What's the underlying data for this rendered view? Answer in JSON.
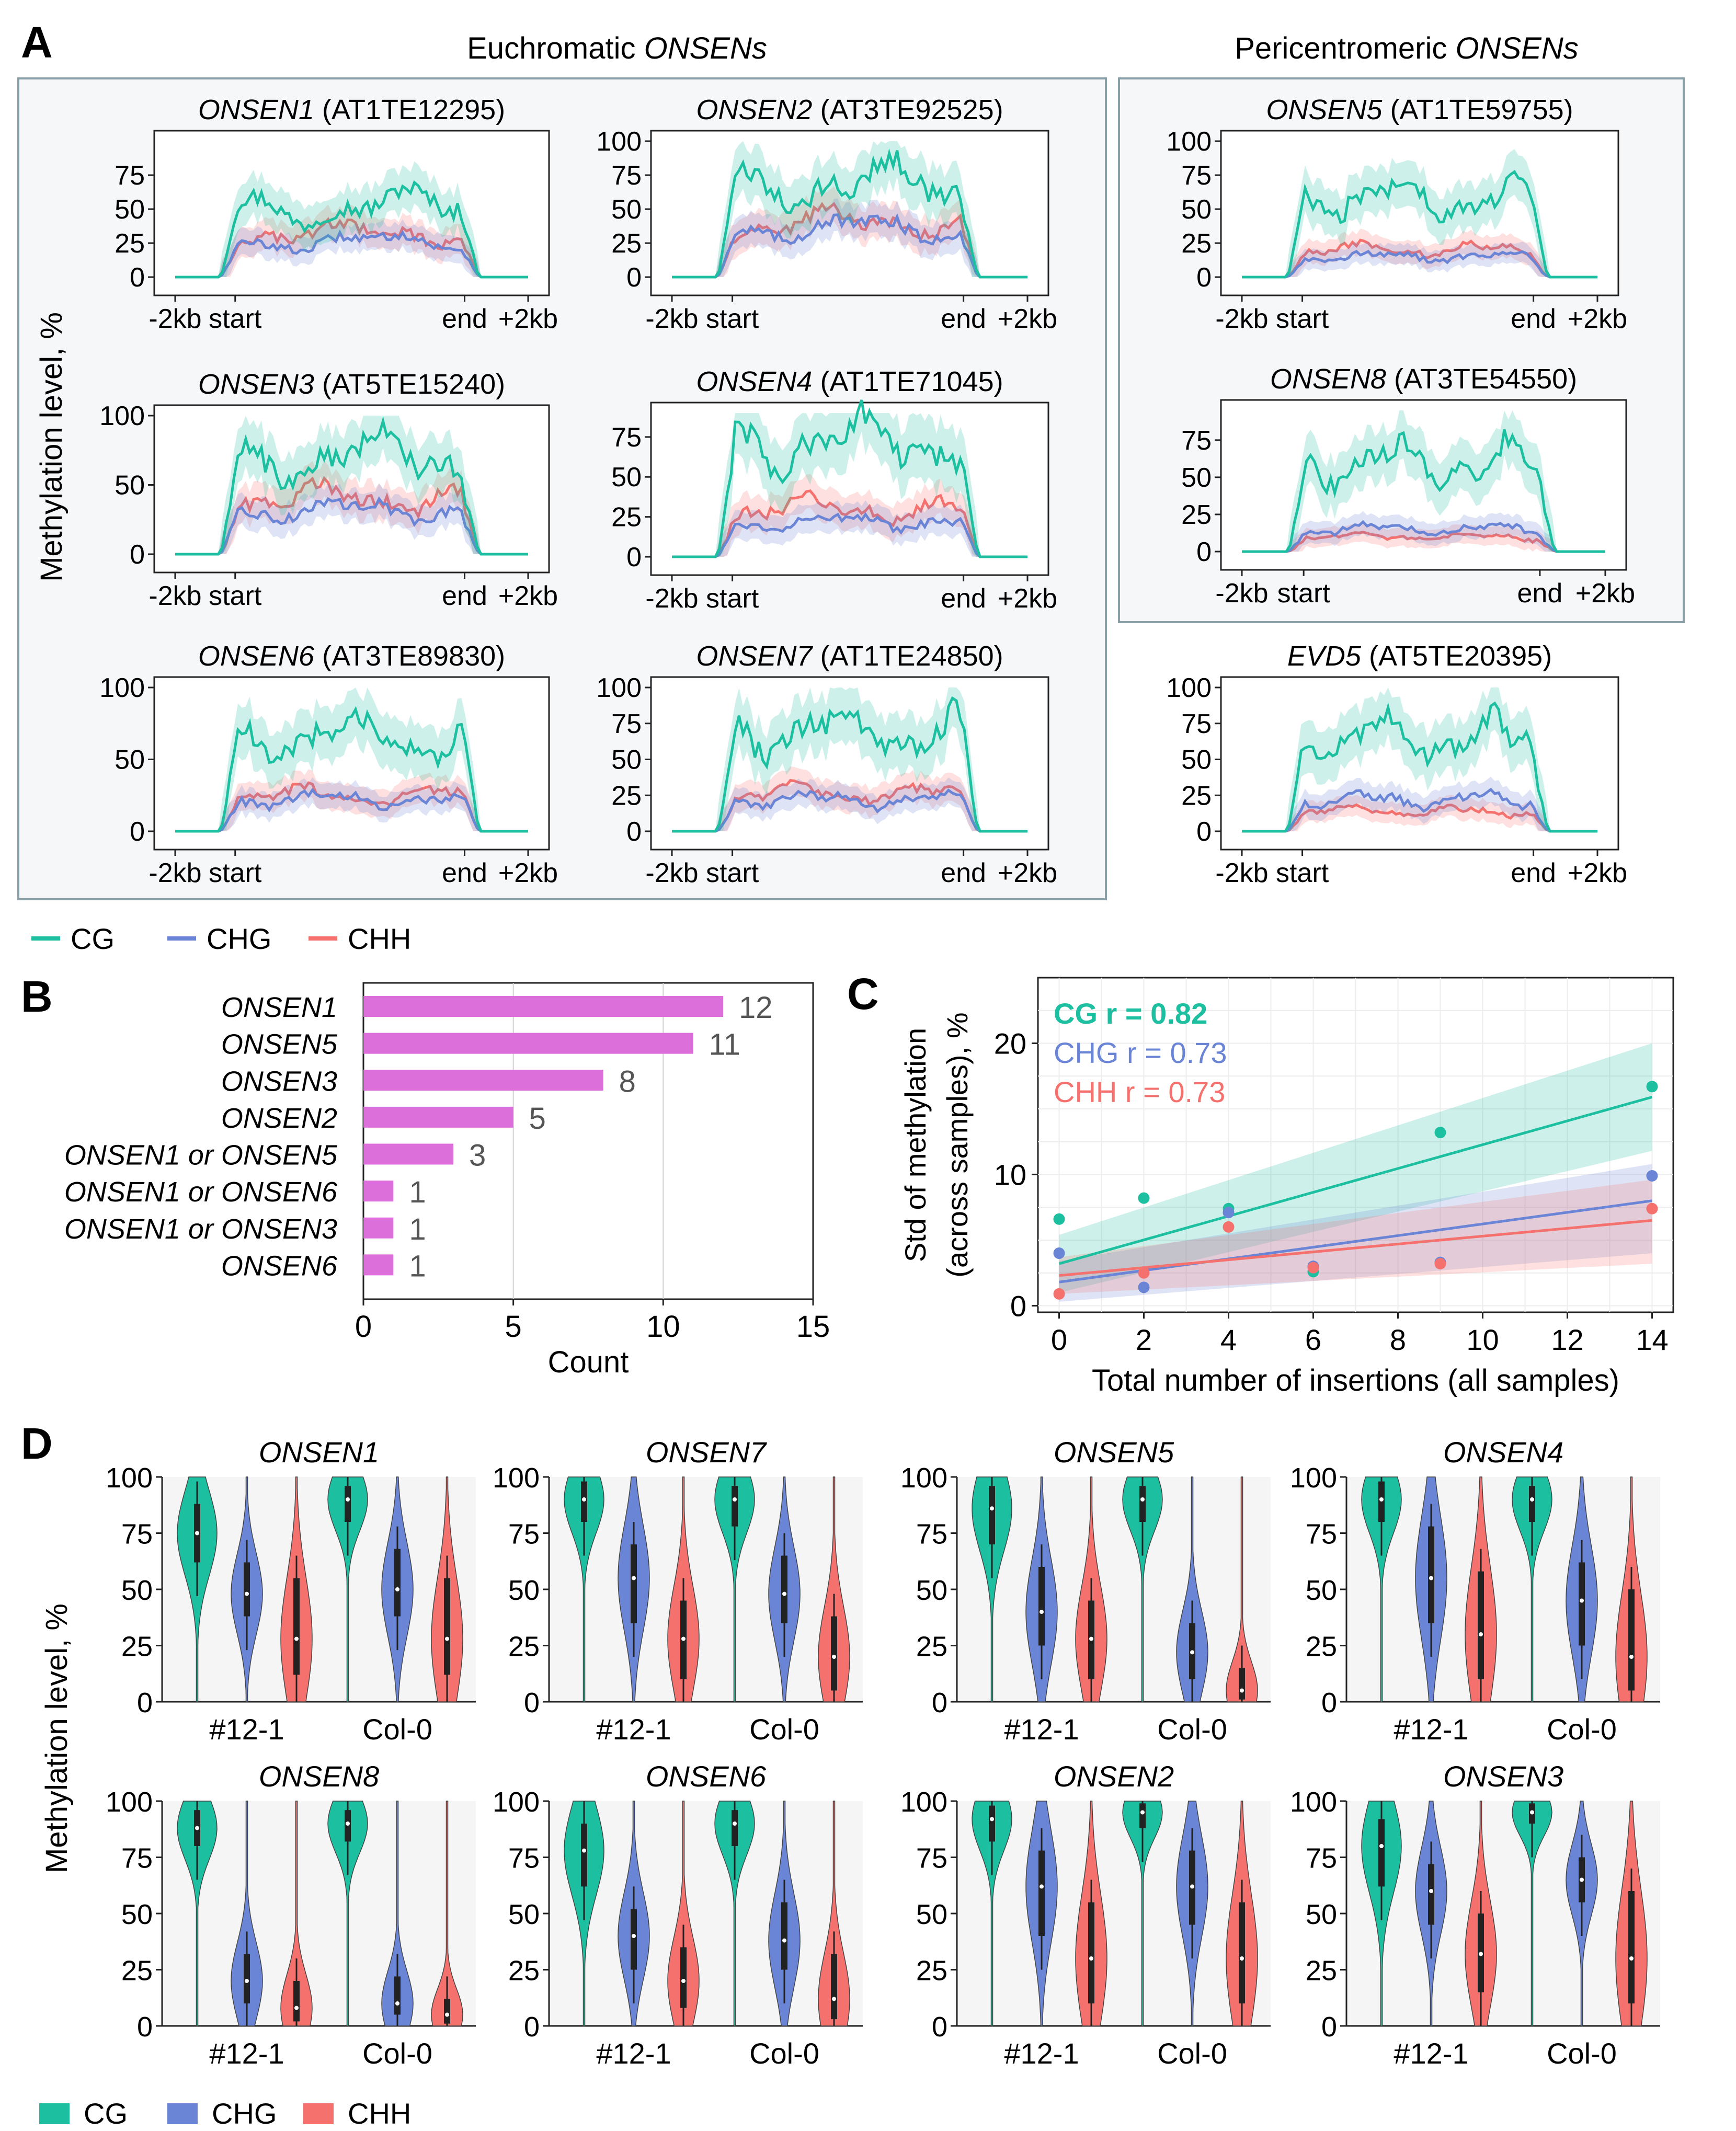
{
  "figure": {
    "panel_labels": [
      "A",
      "B",
      "C",
      "D"
    ],
    "colors": {
      "CG": "#1cbf9f",
      "CHG": "#6a84d6",
      "CHH": "#f4716e",
      "bar": "#dd6fdb",
      "box_bg": "#f6f7f8",
      "box_border": "#8aa0a8",
      "plot_bg": "#f5f5f5"
    }
  },
  "panel_a": {
    "group_titles": {
      "euchromatic": {
        "italic": "ONSENs",
        "plain": "Euchromatic "
      },
      "pericentromeric": {
        "italic": "ONSENs",
        "plain": "Pericentromeric "
      }
    },
    "y_axis_label": "Methylation level, %",
    "x_ticks": [
      "-2kb",
      "start",
      "end",
      "+2kb"
    ],
    "legend": [
      "CG",
      "CHG",
      "CHH"
    ]
  },
  "panel_b": {
    "xlabel": "Count",
    "x_ticks": [
      "0",
      "5",
      "10",
      "15"
    ]
  },
  "panel_c": {
    "xlabel": "Total number of insertions (all samples)",
    "ylabel_line1": "Std of methylation",
    "ylabel_line2": "(across samples), %",
    "annotations": [
      "CG r = 0.82",
      "CHG r = 0.73",
      "CHH r = 0.73"
    ],
    "x_ticks": [
      "0",
      "2",
      "4",
      "6",
      "8",
      "10",
      "12",
      "14"
    ],
    "y_ticks": [
      "0",
      "10",
      "20"
    ]
  },
  "panel_d": {
    "y_axis_label": "Methylation level, %",
    "x_ticks": [
      "#12-1",
      "Col-0"
    ],
    "legend": [
      "CG",
      "CHG",
      "CHH"
    ]
  },
  "chart_data": [
    {
      "type": "line",
      "panel": "A",
      "description": "Methylation profiles along ONSEN elements (metaplot, mean with shaded CI)",
      "x": [
        "-2kb",
        "start",
        "end",
        "+2kb"
      ],
      "series_names": [
        "CG",
        "CHG",
        "CHH"
      ],
      "subplots": [
        {
          "name": "ONSEN1",
          "id": "(AT1TE12295)",
          "y_ticks": [
            "0",
            "25",
            "50",
            "75"
          ],
          "ylim": [
            0,
            100
          ],
          "body_mean": {
            "CG": 52,
            "CHG": 26,
            "CHH": 32
          }
        },
        {
          "name": "ONSEN2",
          "id": "(AT3TE92525)",
          "y_ticks": [
            "0",
            "25",
            "50",
            "75",
            "100"
          ],
          "ylim": [
            0,
            100
          ],
          "body_mean": {
            "CG": 68,
            "CHG": 36,
            "CHH": 40
          }
        },
        {
          "name": "ONSEN3",
          "id": "(AT5TE15240)",
          "y_ticks": [
            "0",
            "50",
            "100"
          ],
          "ylim": [
            0,
            100
          ],
          "body_mean": {
            "CG": 70,
            "CHG": 32,
            "CHH": 40
          }
        },
        {
          "name": "ONSEN4",
          "id": "(AT1TE71045)",
          "y_ticks": [
            "0",
            "25",
            "50",
            "75"
          ],
          "ylim": [
            0,
            90
          ],
          "body_mean": {
            "CG": 72,
            "CHG": 22,
            "CHH": 30
          }
        },
        {
          "name": "ONSEN6",
          "id": "(AT3TE89830)",
          "y_ticks": [
            "0",
            "50",
            "100"
          ],
          "ylim": [
            0,
            100
          ],
          "body_mean": {
            "CG": 65,
            "CHG": 22,
            "CHH": 25
          }
        },
        {
          "name": "ONSEN7",
          "id": "(AT1TE24850)",
          "y_ticks": [
            "0",
            "25",
            "50",
            "75",
            "100"
          ],
          "ylim": [
            0,
            100
          ],
          "body_mean": {
            "CG": 70,
            "CHG": 22,
            "CHH": 26
          }
        },
        {
          "name": "ONSEN5",
          "id": "(AT1TE59755)",
          "y_ticks": [
            "0",
            "25",
            "50",
            "75",
            "100"
          ],
          "ylim": [
            0,
            100
          ],
          "body_mean": {
            "CG": 58,
            "CHG": 15,
            "CHH": 20
          }
        },
        {
          "name": "ONSEN8",
          "id": "(AT3TE54550)",
          "y_ticks": [
            "0",
            "25",
            "50",
            "75"
          ],
          "ylim": [
            0,
            95
          ],
          "body_mean": {
            "CG": 60,
            "CHG": 15,
            "CHH": 10
          }
        },
        {
          "name": "EVD5",
          "id": "(AT5TE20395)",
          "y_ticks": [
            "0",
            "25",
            "50",
            "75",
            "100"
          ],
          "ylim": [
            0,
            100
          ],
          "body_mean": {
            "CG": 65,
            "CHG": 22,
            "CHH": 14
          }
        }
      ]
    },
    {
      "type": "bar",
      "panel": "B",
      "orientation": "horizontal",
      "categories": [
        "ONSEN1",
        "ONSEN5",
        "ONSEN3",
        "ONSEN2",
        "ONSEN1 or ONSEN5",
        "ONSEN1 or ONSEN6",
        "ONSEN1 or ONSEN3",
        "ONSEN6"
      ],
      "values": [
        12,
        11,
        8,
        5,
        3,
        1,
        1,
        1
      ],
      "labels": [
        "12",
        "11",
        "8",
        "5",
        "3",
        "1",
        "1",
        "1"
      ],
      "xlabel": "Count",
      "xlim": [
        0,
        15
      ]
    },
    {
      "type": "scatter",
      "panel": "C",
      "xlabel": "Total number of insertions (all samples)",
      "ylabel": "Std of methylation (across samples), %",
      "xlim": [
        -0.5,
        14.5
      ],
      "ylim": [
        -0.5,
        25
      ],
      "series": [
        {
          "name": "CG",
          "points": [
            [
              0,
              6.6
            ],
            [
              2,
              8.2
            ],
            [
              4,
              7.4
            ],
            [
              6,
              2.6
            ],
            [
              9,
              13.2
            ],
            [
              14,
              16.7
            ]
          ],
          "fit": [
            [
              0,
              3.2
            ],
            [
              14,
              15.9
            ]
          ],
          "ci": [
            [
              0,
              1.0,
              5.4
            ],
            [
              14,
              11.8,
              20.0
            ]
          ]
        },
        {
          "name": "CHG",
          "points": [
            [
              0,
              4.0
            ],
            [
              2,
              1.4
            ],
            [
              4,
              7.1
            ],
            [
              6,
              3.0
            ],
            [
              9,
              3.3
            ],
            [
              14,
              9.9
            ]
          ],
          "fit": [
            [
              0,
              1.8
            ],
            [
              14,
              8.0
            ]
          ],
          "ci": [
            [
              0,
              0.3,
              3.4
            ],
            [
              14,
              4.0,
              10.8
            ]
          ]
        },
        {
          "name": "CHH",
          "points": [
            [
              0,
              0.9
            ],
            [
              2,
              2.5
            ],
            [
              4,
              6.0
            ],
            [
              6,
              2.9
            ],
            [
              9,
              3.2
            ],
            [
              14,
              7.4
            ]
          ],
          "fit": [
            [
              0,
              2.3
            ],
            [
              14,
              6.5
            ]
          ],
          "ci": [
            [
              0,
              0.9,
              3.7
            ],
            [
              14,
              3.2,
              9.6
            ]
          ]
        }
      ],
      "annotations": [
        "CG r = 0.82",
        "CHG r = 0.73",
        "CHH r = 0.73"
      ]
    },
    {
      "type": "violin",
      "panel": "D",
      "ylabel": "Methylation level, %",
      "ylim": [
        0,
        100
      ],
      "y_ticks": [
        "0",
        "25",
        "50",
        "75",
        "100"
      ],
      "groups": [
        "#12-1",
        "Col-0"
      ],
      "contexts": [
        "CG",
        "CHG",
        "CHH"
      ],
      "subplots": [
        {
          "name": "ONSEN1",
          "median": {
            "#12-1": [
              75,
              48,
              28
            ],
            "Col-0": [
              90,
              50,
              28
            ]
          },
          "iqr": {
            "#12-1": [
              [
                62,
                88
              ],
              [
                38,
                62
              ],
              [
                12,
                55
              ]
            ],
            "Col-0": [
              [
                80,
                96
              ],
              [
                38,
                68
              ],
              [
                12,
                55
              ]
            ]
          }
        },
        {
          "name": "ONSEN7",
          "median": {
            "#12-1": [
              90,
              55,
              28
            ],
            "Col-0": [
              90,
              48,
              20
            ]
          },
          "iqr": {
            "#12-1": [
              [
                80,
                98
              ],
              [
                35,
                70
              ],
              [
                10,
                45
              ]
            ],
            "Col-0": [
              [
                78,
                96
              ],
              [
                35,
                65
              ],
              [
                5,
                38
              ]
            ]
          }
        },
        {
          "name": "ONSEN5",
          "median": {
            "#12-1": [
              86,
              40,
              28
            ],
            "Col-0": [
              90,
              22,
              5
            ]
          },
          "iqr": {
            "#12-1": [
              [
                70,
                96
              ],
              [
                25,
                60
              ],
              [
                10,
                45
              ]
            ],
            "Col-0": [
              [
                80,
                96
              ],
              [
                10,
                35
              ],
              [
                1,
                15
              ]
            ]
          }
        },
        {
          "name": "ONSEN4",
          "median": {
            "#12-1": [
              90,
              55,
              30
            ],
            "Col-0": [
              90,
              45,
              20
            ]
          },
          "iqr": {
            "#12-1": [
              [
                80,
                98
              ],
              [
                35,
                78
              ],
              [
                10,
                58
              ]
            ],
            "Col-0": [
              [
                80,
                96
              ],
              [
                25,
                62
              ],
              [
                5,
                50
              ]
            ]
          }
        },
        {
          "name": "ONSEN8",
          "median": {
            "#12-1": [
              88,
              20,
              8
            ],
            "Col-0": [
              90,
              10,
              5
            ]
          },
          "iqr": {
            "#12-1": [
              [
                80,
                96
              ],
              [
                10,
                32
              ],
              [
                2,
                20
              ]
            ],
            "Col-0": [
              [
                82,
                96
              ],
              [
                5,
                22
              ],
              [
                1,
                12
              ]
            ]
          }
        },
        {
          "name": "ONSEN6",
          "median": {
            "#12-1": [
              78,
              40,
              20
            ],
            "Col-0": [
              90,
              38,
              12
            ]
          },
          "iqr": {
            "#12-1": [
              [
                62,
                90
              ],
              [
                25,
                52
              ],
              [
                8,
                35
              ]
            ],
            "Col-0": [
              [
                80,
                96
              ],
              [
                25,
                55
              ],
              [
                3,
                32
              ]
            ]
          }
        },
        {
          "name": "ONSEN2",
          "median": {
            "#12-1": [
              92,
              62,
              30
            ],
            "Col-0": [
              95,
              62,
              30
            ]
          },
          "iqr": {
            "#12-1": [
              [
                82,
                98
              ],
              [
                40,
                78
              ],
              [
                10,
                55
              ]
            ],
            "Col-0": [
              [
                88,
                99
              ],
              [
                45,
                78
              ],
              [
                10,
                55
              ]
            ]
          }
        },
        {
          "name": "ONSEN3",
          "median": {
            "#12-1": [
              80,
              60,
              32
            ],
            "Col-0": [
              95,
              65,
              30
            ]
          },
          "iqr": {
            "#12-1": [
              [
                62,
                92
              ],
              [
                45,
                72
              ],
              [
                15,
                50
              ]
            ],
            "Col-0": [
              [
                90,
                99
              ],
              [
                55,
                75
              ],
              [
                10,
                60
              ]
            ]
          }
        }
      ]
    }
  ]
}
